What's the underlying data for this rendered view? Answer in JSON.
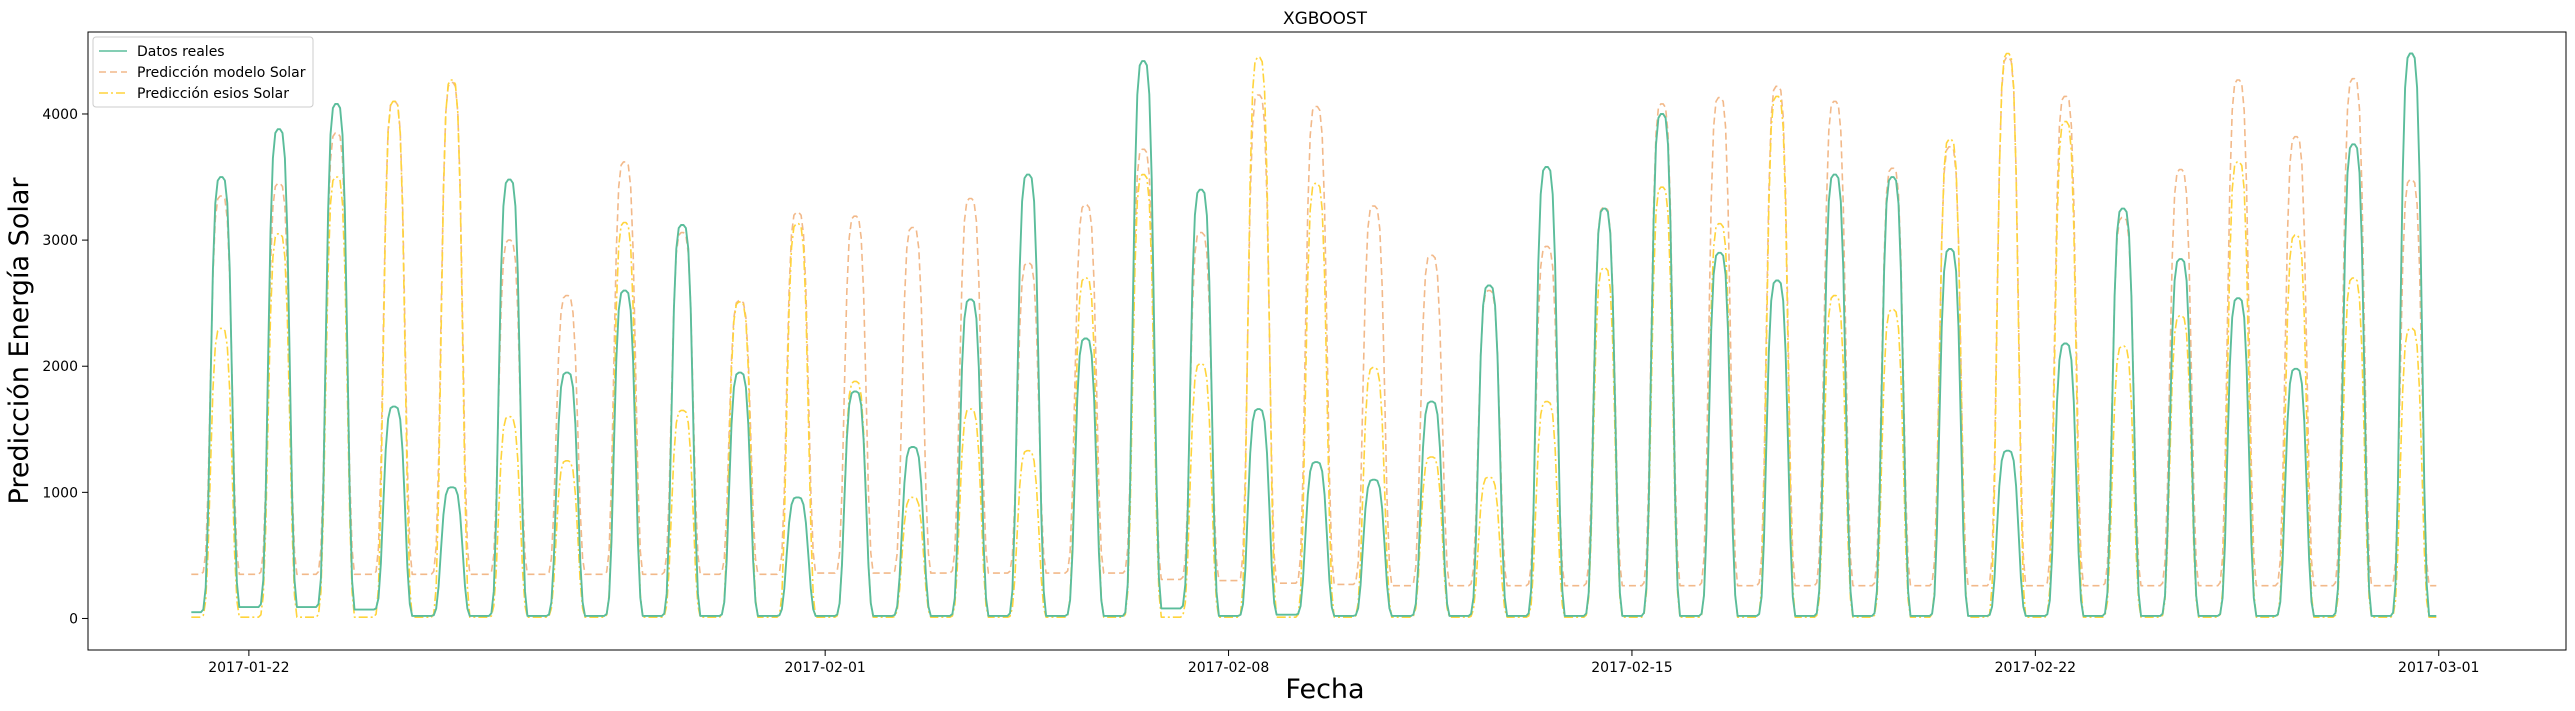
{
  "chart_data": {
    "type": "line",
    "title": "XGBOOST",
    "xlabel": "Fecha",
    "ylabel": "Predicción Energía Solar",
    "x_start": "2017-01-21",
    "x_days": 38,
    "xlim": [
      "2017-01-19T05:00",
      "2017-03-03T05:00"
    ],
    "ylim": [
      -250,
      4650
    ],
    "x_ticks": [
      {
        "date": "2017-01-22",
        "label": "2017-01-22"
      },
      {
        "date": "2017-02-01",
        "label": "2017-02-01"
      },
      {
        "date": "2017-02-08",
        "label": "2017-02-08"
      },
      {
        "date": "2017-02-15",
        "label": "2017-02-15"
      },
      {
        "date": "2017-02-22",
        "label": "2017-02-22"
      },
      {
        "date": "2017-03-01",
        "label": "2017-03-01"
      }
    ],
    "y_ticks": [
      0,
      1000,
      2000,
      3000,
      4000
    ],
    "y_tick_labels": [
      "0",
      "1000",
      "2000",
      "3000",
      "4000"
    ],
    "grid": false,
    "legend_position": "top-left",
    "series": [
      {
        "name": "Datos reales",
        "color": "#5bbd9b",
        "style": "solid",
        "night": [
          50,
          90,
          90,
          70,
          20,
          20,
          20,
          20,
          20,
          20,
          20,
          20,
          20,
          20,
          20,
          20,
          20,
          80,
          20,
          30,
          20,
          20,
          20,
          20,
          20,
          20,
          20,
          20,
          20,
          20,
          20,
          20,
          20,
          20,
          20,
          20,
          20,
          20
        ],
        "daily_peaks": [
          3500,
          3880,
          4080,
          1680,
          1040,
          3480,
          1950,
          2600,
          3120,
          1950,
          960,
          1800,
          1360,
          2530,
          3520,
          2220,
          4420,
          3400,
          1660,
          1240,
          1100,
          1720,
          2640,
          3580,
          3250,
          4000,
          2900,
          2680,
          3520,
          3500,
          2930,
          1330,
          2180,
          3250,
          2850,
          2540,
          1980,
          3760,
          4480
        ]
      },
      {
        "name": "Predicción modelo Solar",
        "color": "#f2b98a",
        "style": "dashed",
        "night": [
          350,
          350,
          350,
          350,
          350,
          350,
          350,
          350,
          350,
          350,
          350,
          360,
          360,
          360,
          360,
          360,
          360,
          310,
          300,
          280,
          270,
          260,
          260,
          260,
          260,
          260,
          260,
          260,
          260,
          260,
          260,
          260,
          260,
          260,
          260,
          260,
          260,
          260
        ],
        "daily_peaks": [
          3350,
          3450,
          3850,
          4100,
          4250,
          3000,
          2560,
          3620,
          3060,
          2520,
          3220,
          3190,
          3100,
          3330,
          2820,
          3280,
          3720,
          3060,
          4150,
          4060,
          3270,
          2880,
          2600,
          2950,
          3260,
          4080,
          4130,
          4220,
          4100,
          3570,
          3740,
          4450,
          4140,
          3180,
          3560,
          4270,
          3820,
          4280,
          3480
        ]
      },
      {
        "name": "Predicción esios Solar",
        "color": "#ffd43b",
        "style": "dashdot",
        "night": [
          10,
          10,
          10,
          10,
          10,
          10,
          10,
          10,
          10,
          10,
          10,
          10,
          10,
          10,
          10,
          10,
          10,
          10,
          10,
          10,
          10,
          10,
          10,
          10,
          10,
          10,
          10,
          10,
          10,
          10,
          10,
          10,
          10,
          10,
          10,
          10,
          10,
          10
        ],
        "daily_peaks": [
          2300,
          3050,
          3500,
          4100,
          4270,
          1600,
          1250,
          3140,
          1650,
          2510,
          3130,
          1880,
          960,
          1660,
          1330,
          2700,
          3520,
          2020,
          4450,
          3450,
          1990,
          1280,
          1120,
          1720,
          2780,
          3420,
          3130,
          4140,
          2560,
          2450,
          3800,
          4480,
          3940,
          2160,
          2400,
          3620,
          3040,
          2700,
          2300
        ]
      }
    ]
  }
}
